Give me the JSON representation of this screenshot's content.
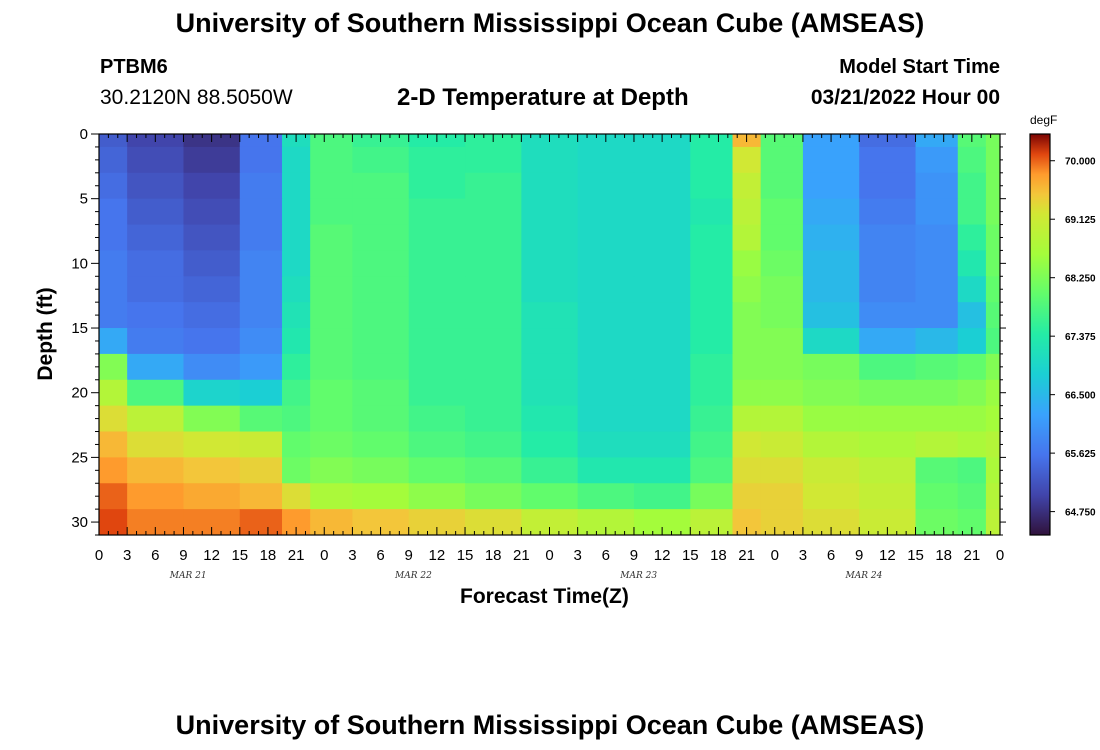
{
  "header": {
    "title": "University of Southern Mississippi Ocean Cube (AMSEAS)",
    "station": "PTBM6",
    "coords": "30.2120N  88.5050W",
    "subtitle": "2-D Temperature at Depth",
    "model_start_label": "Model Start Time",
    "model_start_value": "03/21/2022 Hour 00"
  },
  "footer": {
    "title": "University of Southern Mississippi Ocean Cube (AMSEAS)"
  },
  "chart_data": {
    "type": "heatmap",
    "title": "2-D Temperature at Depth",
    "xlabel": "Forecast Time(Z)",
    "ylabel": "Depth (ft)",
    "x_units": "hours since model start (03/21/2022 00Z)",
    "xlim": [
      0,
      96
    ],
    "ylim": [
      0,
      31
    ],
    "y_inverted": true,
    "x_tick_labels": [
      "0",
      "3",
      "6",
      "9",
      "12",
      "15",
      "18",
      "21",
      "0",
      "3",
      "6",
      "9",
      "12",
      "15",
      "18",
      "21",
      "0",
      "3",
      "6",
      "9",
      "12",
      "15",
      "18",
      "21",
      "0",
      "3",
      "6",
      "9",
      "12",
      "15",
      "18",
      "21",
      "0"
    ],
    "day_labels": [
      "MAR 21",
      "MAR 22",
      "MAR 23",
      "MAR 24"
    ],
    "y_ticks": [
      0,
      5,
      10,
      15,
      20,
      25,
      30
    ],
    "colorbar": {
      "label": "degF",
      "ticks": [
        "70.000",
        "69.125",
        "68.250",
        "67.375",
        "66.500",
        "65.625",
        "64.750"
      ],
      "range": [
        64.4,
        70.4
      ]
    },
    "depths_ft": [
      0,
      2,
      4,
      6,
      8,
      10,
      12,
      14,
      16,
      18,
      20,
      22,
      24,
      26,
      28,
      30
    ],
    "hours": [
      0,
      6,
      12,
      18,
      21,
      24,
      30,
      36,
      42,
      48,
      54,
      60,
      66,
      69,
      72,
      78,
      84,
      90,
      93,
      96
    ],
    "temps_degF": [
      [
        65.3,
        65.0,
        64.8,
        65.6,
        67.1,
        67.8,
        67.6,
        67.4,
        67.5,
        67.1,
        67.0,
        67.0,
        67.4,
        69.6,
        67.9,
        66.2,
        65.5,
        66.3,
        67.9,
        68.2
      ],
      [
        65.4,
        65.1,
        64.9,
        65.6,
        67.0,
        67.8,
        67.7,
        67.5,
        67.5,
        67.1,
        67.0,
        67.0,
        67.4,
        69.2,
        67.9,
        66.2,
        65.6,
        66.1,
        67.8,
        68.2
      ],
      [
        65.5,
        65.2,
        65.0,
        65.7,
        67.0,
        67.8,
        67.8,
        67.5,
        67.6,
        67.1,
        67.0,
        67.0,
        67.4,
        69.0,
        67.9,
        66.2,
        65.6,
        66.0,
        67.7,
        68.2
      ],
      [
        65.6,
        65.3,
        65.1,
        65.7,
        67.0,
        67.8,
        67.8,
        67.6,
        67.6,
        67.1,
        67.0,
        67.0,
        67.3,
        68.9,
        68.0,
        66.3,
        65.7,
        66.0,
        67.7,
        68.2
      ],
      [
        65.6,
        65.4,
        65.2,
        65.7,
        67.0,
        67.9,
        67.8,
        67.6,
        67.6,
        67.1,
        67.0,
        67.0,
        67.4,
        68.8,
        68.0,
        66.4,
        65.8,
        65.9,
        67.5,
        68.1
      ],
      [
        65.7,
        65.5,
        65.3,
        65.8,
        67.0,
        67.9,
        67.8,
        67.6,
        67.6,
        67.1,
        67.0,
        67.0,
        67.4,
        68.5,
        68.1,
        66.5,
        65.8,
        65.9,
        67.3,
        68.1
      ],
      [
        65.7,
        65.5,
        65.4,
        65.8,
        67.1,
        67.9,
        67.8,
        67.6,
        67.6,
        67.1,
        67.0,
        67.0,
        67.4,
        68.4,
        68.2,
        66.5,
        65.8,
        65.9,
        67.0,
        68.0
      ],
      [
        65.7,
        65.6,
        65.5,
        65.8,
        67.2,
        67.9,
        67.8,
        67.6,
        67.6,
        67.2,
        67.0,
        67.0,
        67.4,
        68.3,
        68.2,
        66.6,
        65.9,
        65.9,
        66.6,
        67.9
      ],
      [
        66.3,
        65.7,
        65.6,
        65.9,
        67.3,
        67.9,
        67.8,
        67.6,
        67.6,
        67.2,
        67.0,
        67.0,
        67.4,
        68.3,
        68.3,
        67.0,
        66.3,
        66.5,
        66.8,
        67.8
      ],
      [
        68.3,
        66.3,
        65.9,
        66.1,
        67.5,
        67.9,
        67.8,
        67.6,
        67.6,
        67.2,
        67.0,
        67.0,
        67.5,
        68.3,
        68.3,
        68.2,
        67.8,
        67.9,
        68.0,
        68.3
      ],
      [
        68.8,
        67.8,
        66.9,
        66.8,
        67.7,
        68.0,
        67.9,
        67.6,
        67.6,
        67.2,
        67.0,
        67.0,
        67.5,
        68.4,
        68.4,
        68.3,
        68.2,
        68.2,
        68.3,
        68.5
      ],
      [
        69.3,
        68.9,
        68.3,
        67.9,
        67.8,
        68.0,
        67.9,
        67.7,
        67.6,
        67.3,
        67.0,
        67.0,
        67.6,
        68.8,
        68.8,
        68.5,
        68.5,
        68.5,
        68.5,
        68.6
      ],
      [
        69.6,
        69.3,
        69.2,
        69.1,
        68.0,
        68.1,
        68.0,
        67.8,
        67.7,
        67.4,
        67.1,
        67.1,
        67.7,
        69.2,
        69.1,
        68.8,
        68.7,
        68.8,
        68.7,
        68.8
      ],
      [
        69.8,
        69.6,
        69.5,
        69.4,
        68.1,
        68.3,
        68.2,
        68.0,
        67.9,
        67.6,
        67.3,
        67.3,
        67.8,
        69.3,
        69.3,
        69.1,
        68.9,
        67.9,
        67.8,
        68.7
      ],
      [
        70.0,
        69.8,
        69.7,
        69.6,
        69.3,
        68.7,
        68.6,
        68.4,
        68.2,
        68.0,
        67.8,
        67.7,
        68.2,
        69.4,
        69.4,
        69.2,
        69.0,
        68.0,
        67.9,
        68.8
      ],
      [
        70.1,
        69.9,
        69.9,
        70.0,
        69.8,
        69.6,
        69.5,
        69.4,
        69.3,
        69.0,
        68.8,
        68.6,
        68.9,
        69.5,
        69.4,
        69.3,
        69.1,
        68.1,
        68.0,
        68.9
      ]
    ]
  }
}
